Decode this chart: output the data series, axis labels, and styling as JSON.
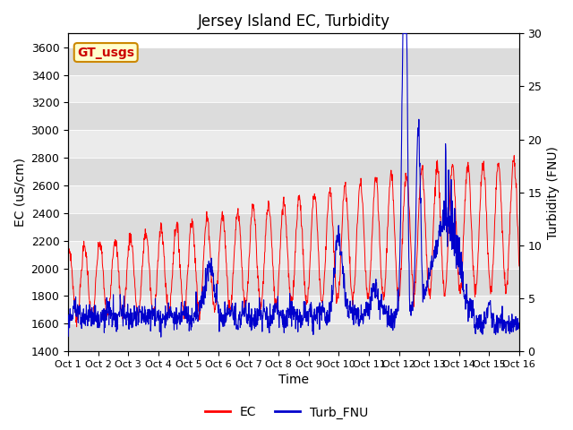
{
  "title": "Jersey Island EC, Turbidity",
  "xlabel": "Time",
  "ylabel_left": "EC (uS/cm)",
  "ylabel_right": "Turbidity (FNU)",
  "ylim_left": [
    1400,
    3700
  ],
  "ylim_right": [
    0,
    30
  ],
  "yticks_left": [
    1400,
    1600,
    1800,
    2000,
    2200,
    2400,
    2600,
    2800,
    3000,
    3200,
    3400,
    3600
  ],
  "yticks_right": [
    0,
    5,
    10,
    15,
    20,
    25,
    30
  ],
  "xtick_labels": [
    "Oct 1",
    "Oct 2",
    "Oct 3",
    "Oct 4",
    "Oct 5",
    "Oct 6",
    "Oct 7",
    "Oct 8",
    "Oct 9",
    "Oct 10",
    "Oct 11",
    "Oct 12",
    "Oct 13",
    "Oct 14",
    "Oct 15",
    "Oct 16"
  ],
  "annotation_text": "GT_usgs",
  "annotation_bg": "#ffffcc",
  "annotation_border": "#cc8800",
  "annotation_text_color": "#cc0000",
  "band_color_dark": "#dcdcdc",
  "band_color_light": "#ebebeb",
  "ec_color": "#ff0000",
  "turb_color": "#0000cc",
  "legend_ec": "EC",
  "legend_turb": "Turb_FNU",
  "title_fontsize": 12,
  "axis_fontsize": 10,
  "tick_fontsize": 9,
  "legend_fontsize": 10
}
